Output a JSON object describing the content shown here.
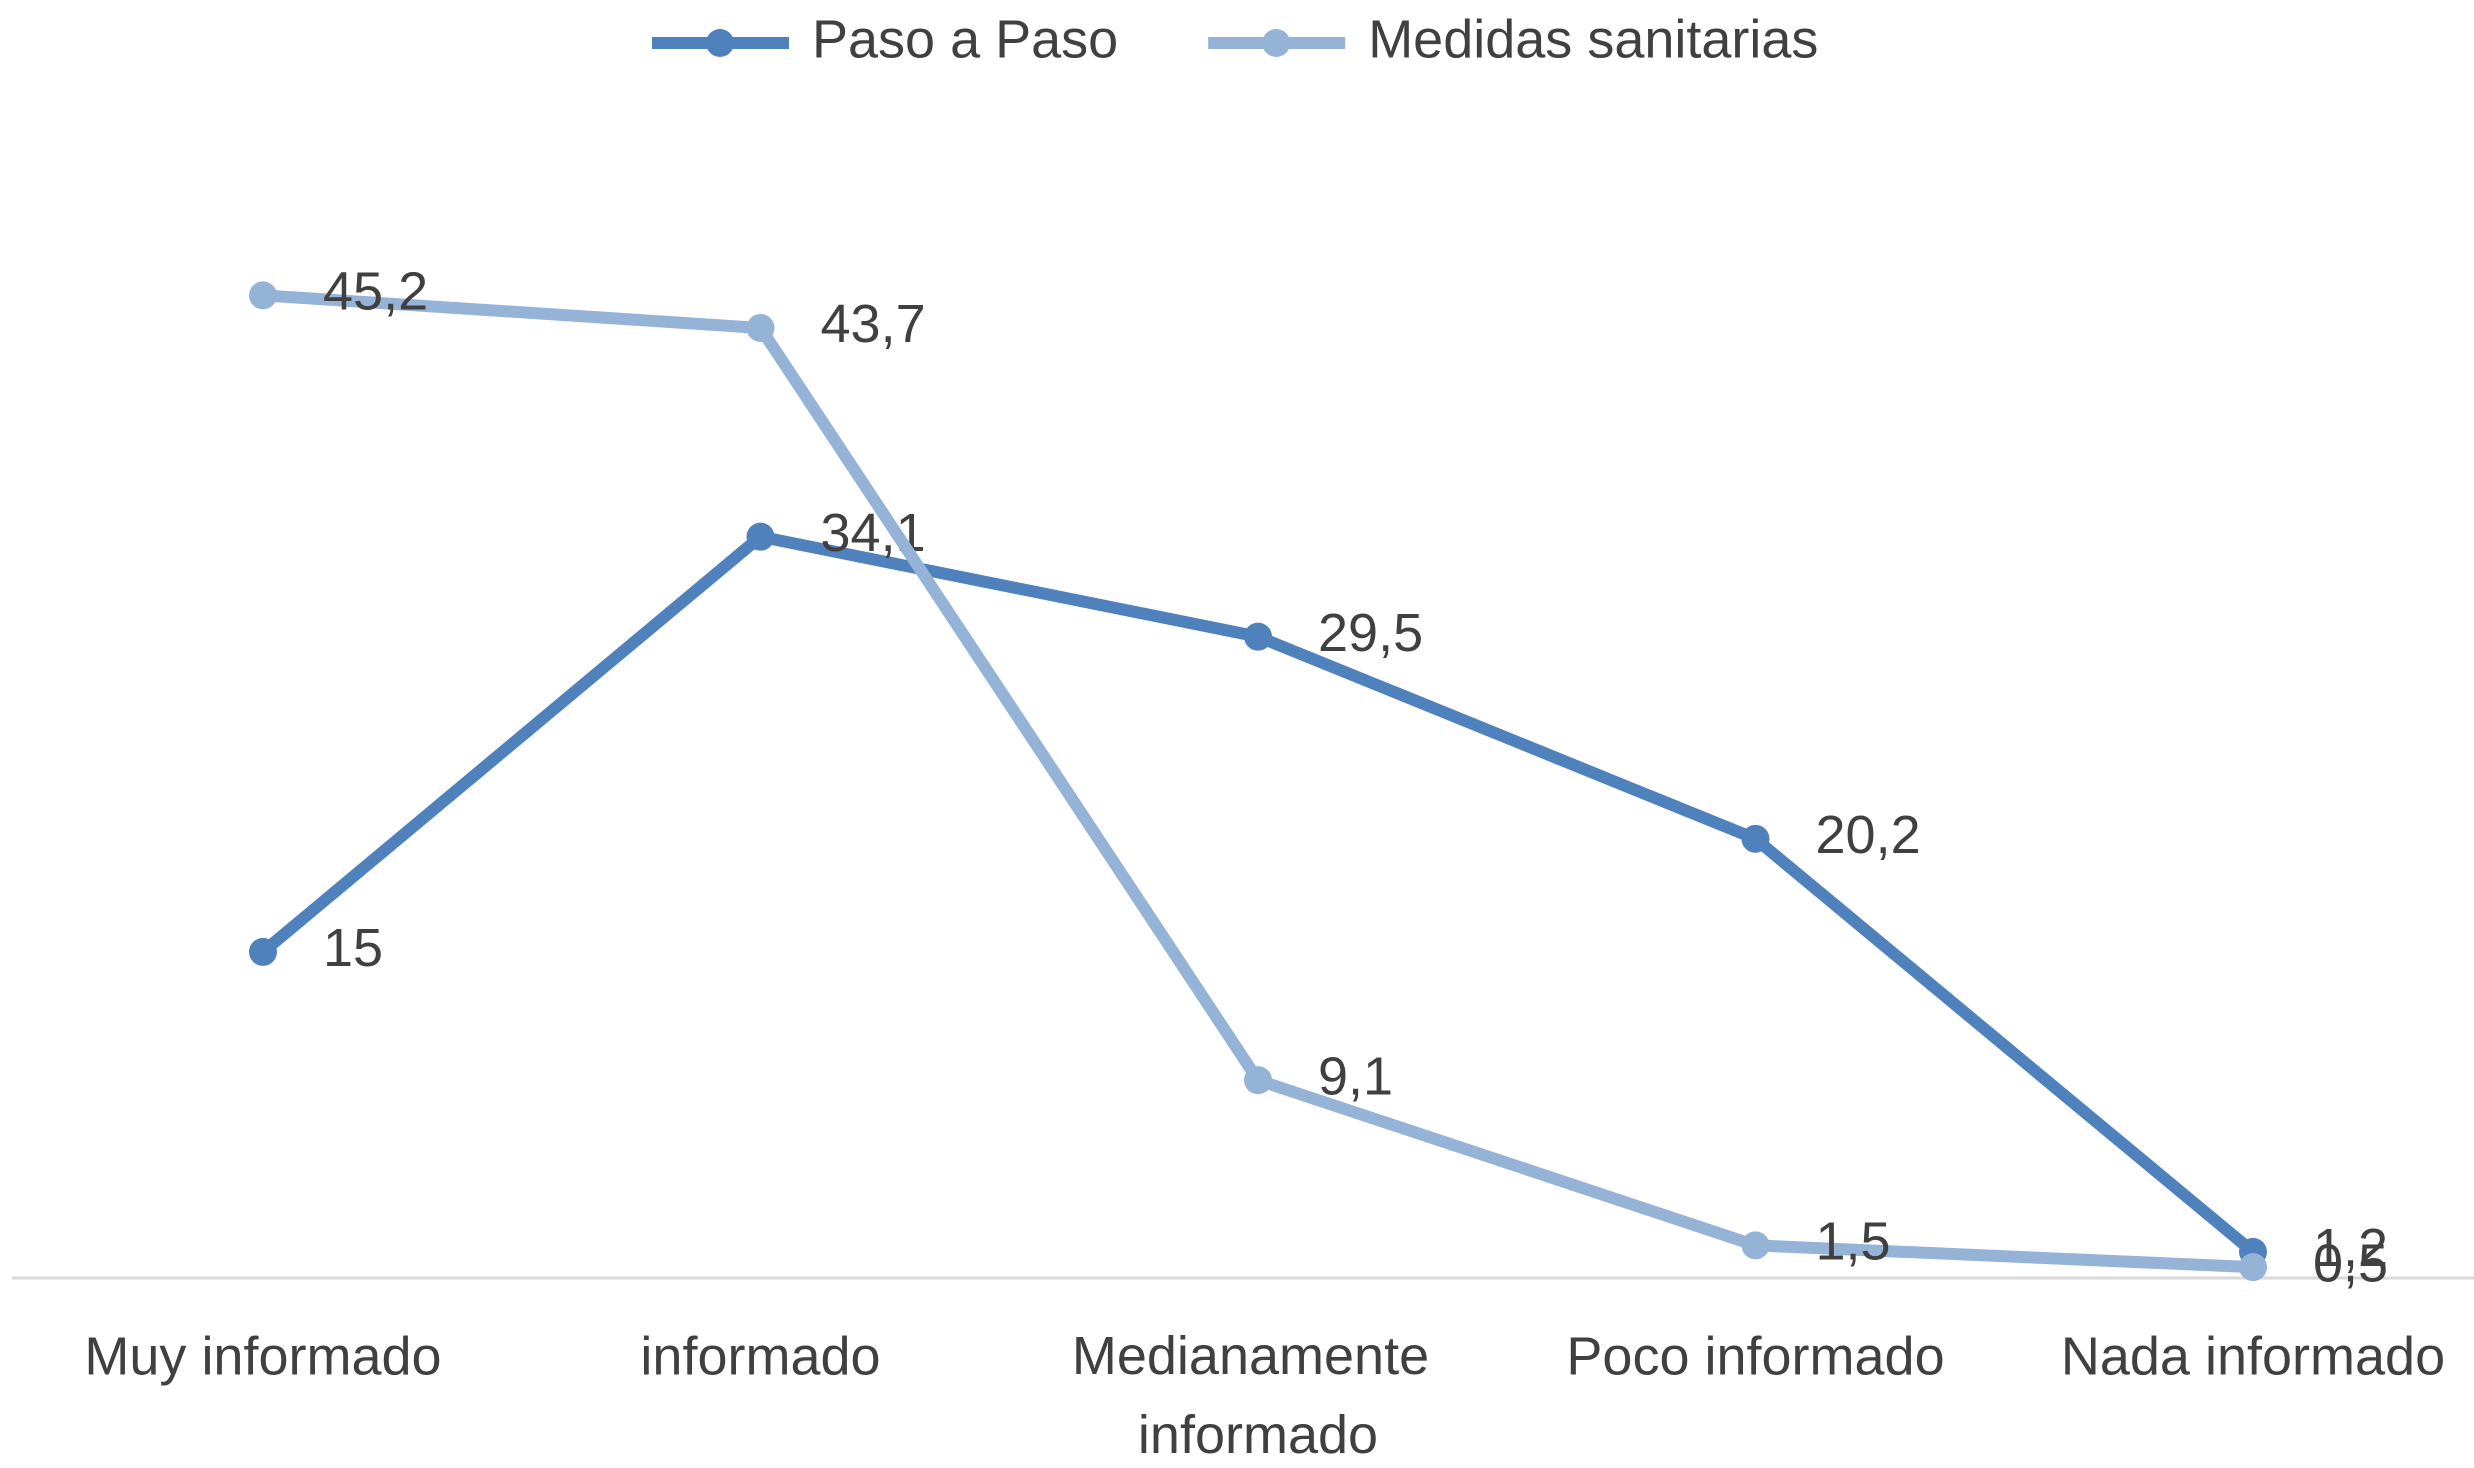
{
  "chart_data": {
    "type": "line",
    "categories": [
      "Muy informado",
      "informado",
      "Medianamente informado",
      "Poco informado",
      "Nada informado"
    ],
    "series": [
      {
        "name": "Paso a Paso",
        "color": "#4f81bd",
        "values": [
          15,
          34.1,
          29.5,
          20.2,
          1.2
        ],
        "value_labels": [
          "15",
          "34,1",
          "29,5",
          "20,2",
          "1,2"
        ]
      },
      {
        "name": "Medidas sanitarias",
        "color": "#95b3d7",
        "values": [
          45.2,
          43.7,
          9.1,
          1.5,
          0.5
        ],
        "value_labels": [
          "45,2",
          "43,7",
          "9,1",
          "1,5",
          "0,5"
        ]
      }
    ],
    "ylim": [
      0,
      50
    ],
    "legend": "top"
  }
}
